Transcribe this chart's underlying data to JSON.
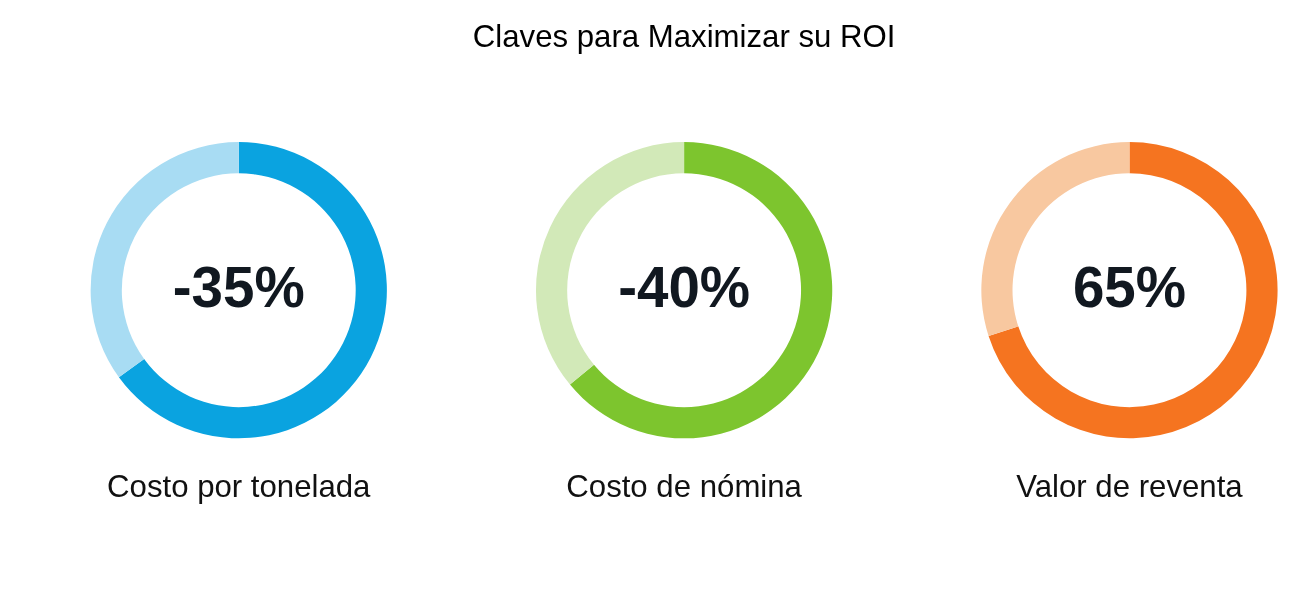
{
  "chart_data": [
    {
      "type": "donut",
      "xlabel": "Costo por tonelada",
      "annotations": [
        "-35%"
      ],
      "categories": [
        null,
        null
      ],
      "values": [
        65,
        35
      ],
      "colors": [
        "#0aa3e0",
        "#a8dcf3"
      ]
    },
    {
      "type": "donut",
      "title": "Claves para Maximizar su ROI",
      "xlabel": "Costo de nómina",
      "annotations": [
        "-40%"
      ],
      "categories": [
        null,
        null
      ],
      "values": [
        64,
        36
      ],
      "colors": [
        "#7dc52e",
        "#d2e9b8"
      ]
    },
    {
      "type": "donut",
      "xlabel": "Valor de reventa",
      "annotations": [
        "65%"
      ],
      "categories": [
        null,
        null
      ],
      "values": [
        70,
        30
      ],
      "colors": [
        "#f57420",
        "#f8c8a0"
      ]
    }
  ]
}
